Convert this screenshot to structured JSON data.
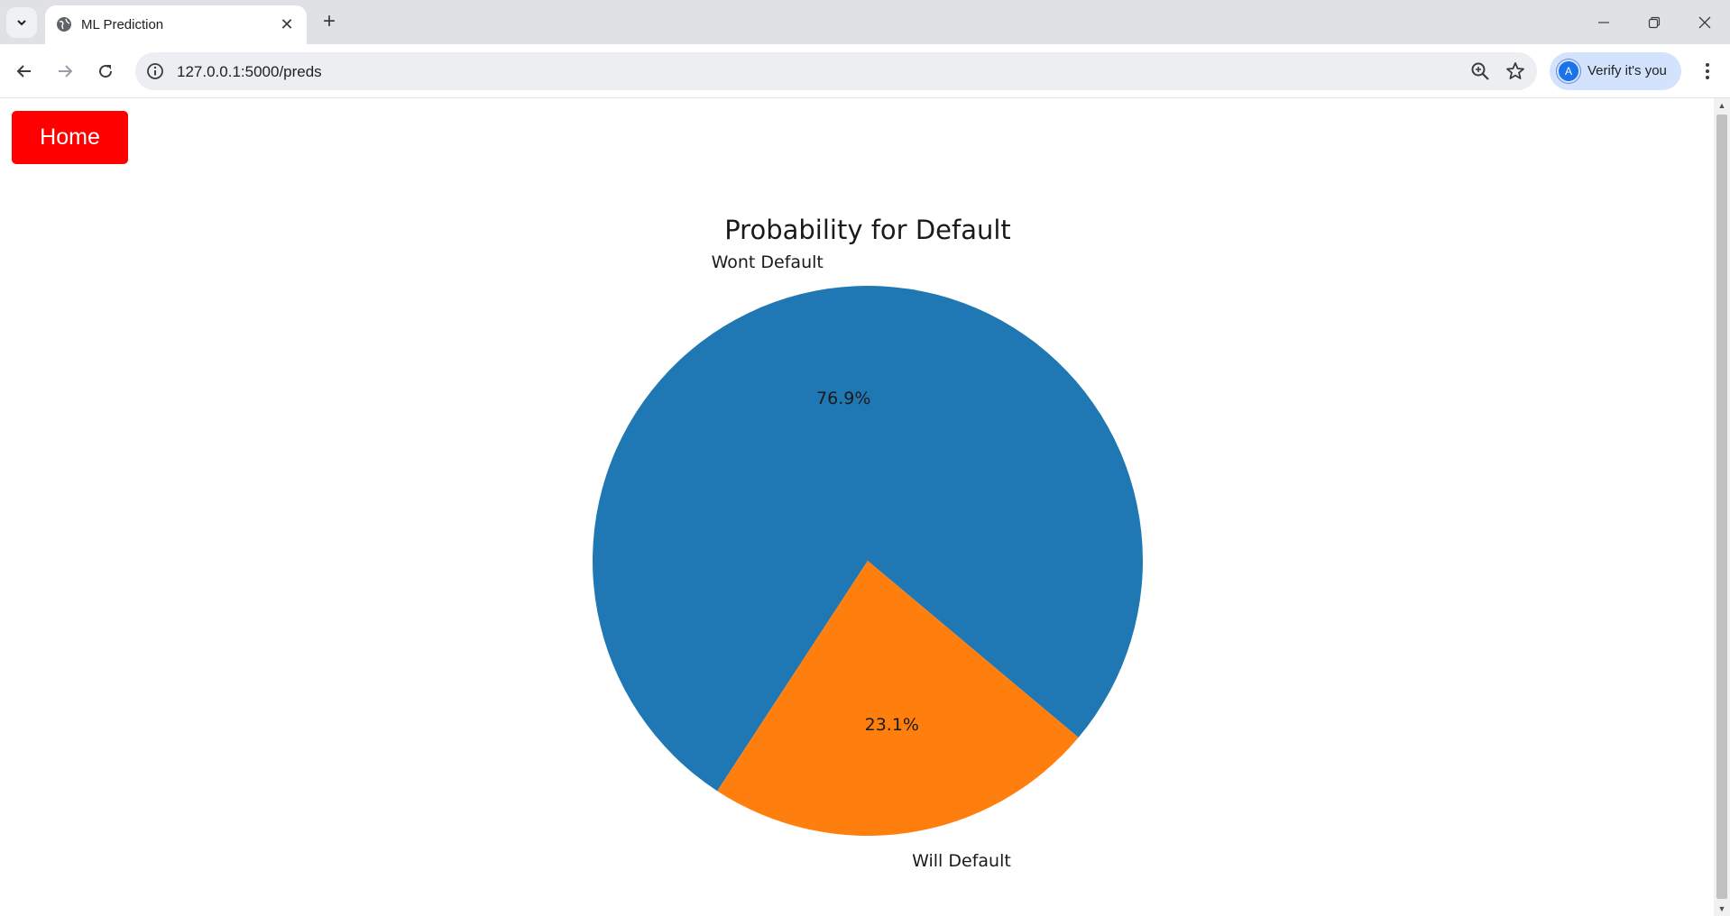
{
  "browser": {
    "tab": {
      "title": "ML Prediction",
      "close_glyph": "✕"
    },
    "new_tab_glyph": "+",
    "url": "127.0.0.1:5000/preds",
    "profile": {
      "initial": "A",
      "label": "Verify it's you"
    }
  },
  "page": {
    "home_button": "Home"
  },
  "chart_data": {
    "type": "pie",
    "title": "Probability for Default",
    "slices": [
      {
        "label": "Wont Default",
        "value": 76.9,
        "pct_label": "76.9%",
        "color": "#1f77b4"
      },
      {
        "label": "Will Default",
        "value": 23.1,
        "pct_label": "23.1%",
        "color": "#ff7f0e"
      }
    ],
    "start_angle_deg": -40,
    "direction": "counterclockwise"
  },
  "colors": {
    "home_button": "#ff0000",
    "tabstrip": "#dfe1e5",
    "omnibox": "#eceef1",
    "profile_chip": "#d3e3fd"
  }
}
